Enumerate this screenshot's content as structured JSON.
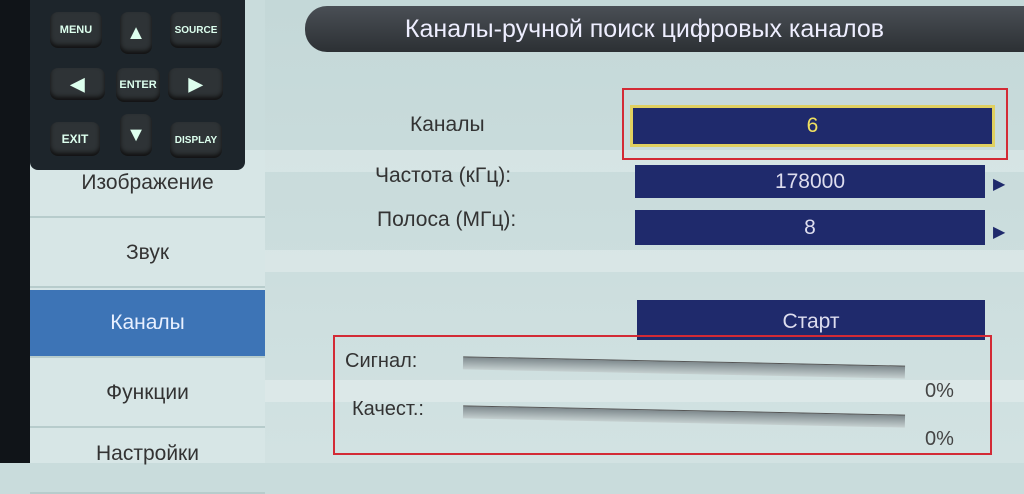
{
  "title": "Каналы-ручной поиск цифровых каналов",
  "remote": {
    "menu": "MENU",
    "source": "SOURCE",
    "enter": "ENTER",
    "exit": "EXIT",
    "display": "DISPLAY",
    "up": "▲",
    "down": "▼",
    "left": "◀",
    "right": "▶"
  },
  "sidebar": {
    "items": [
      {
        "label": "Изображение"
      },
      {
        "label": "Звук"
      },
      {
        "label": "Каналы",
        "active": true
      },
      {
        "label": "Функции"
      },
      {
        "label": "Настройки"
      }
    ]
  },
  "form": {
    "channel_label": "Каналы",
    "channel_value": "6",
    "freq_label": "Частота (кГц):",
    "freq_value": "178000",
    "band_label": "Полоса (МГц):",
    "band_value": "8",
    "arrow": "▶",
    "start_label": "Старт"
  },
  "signal": {
    "signal_label": "Сигнал:",
    "signal_value": "0%",
    "signal_level": 0,
    "quality_label": "Качест.:",
    "quality_value": "0%",
    "quality_level": 0
  },
  "colors": {
    "highlight": "#d32a35",
    "field": "#1f2a6c",
    "active": "#3d74b6",
    "selected_text": "#f0e060"
  }
}
